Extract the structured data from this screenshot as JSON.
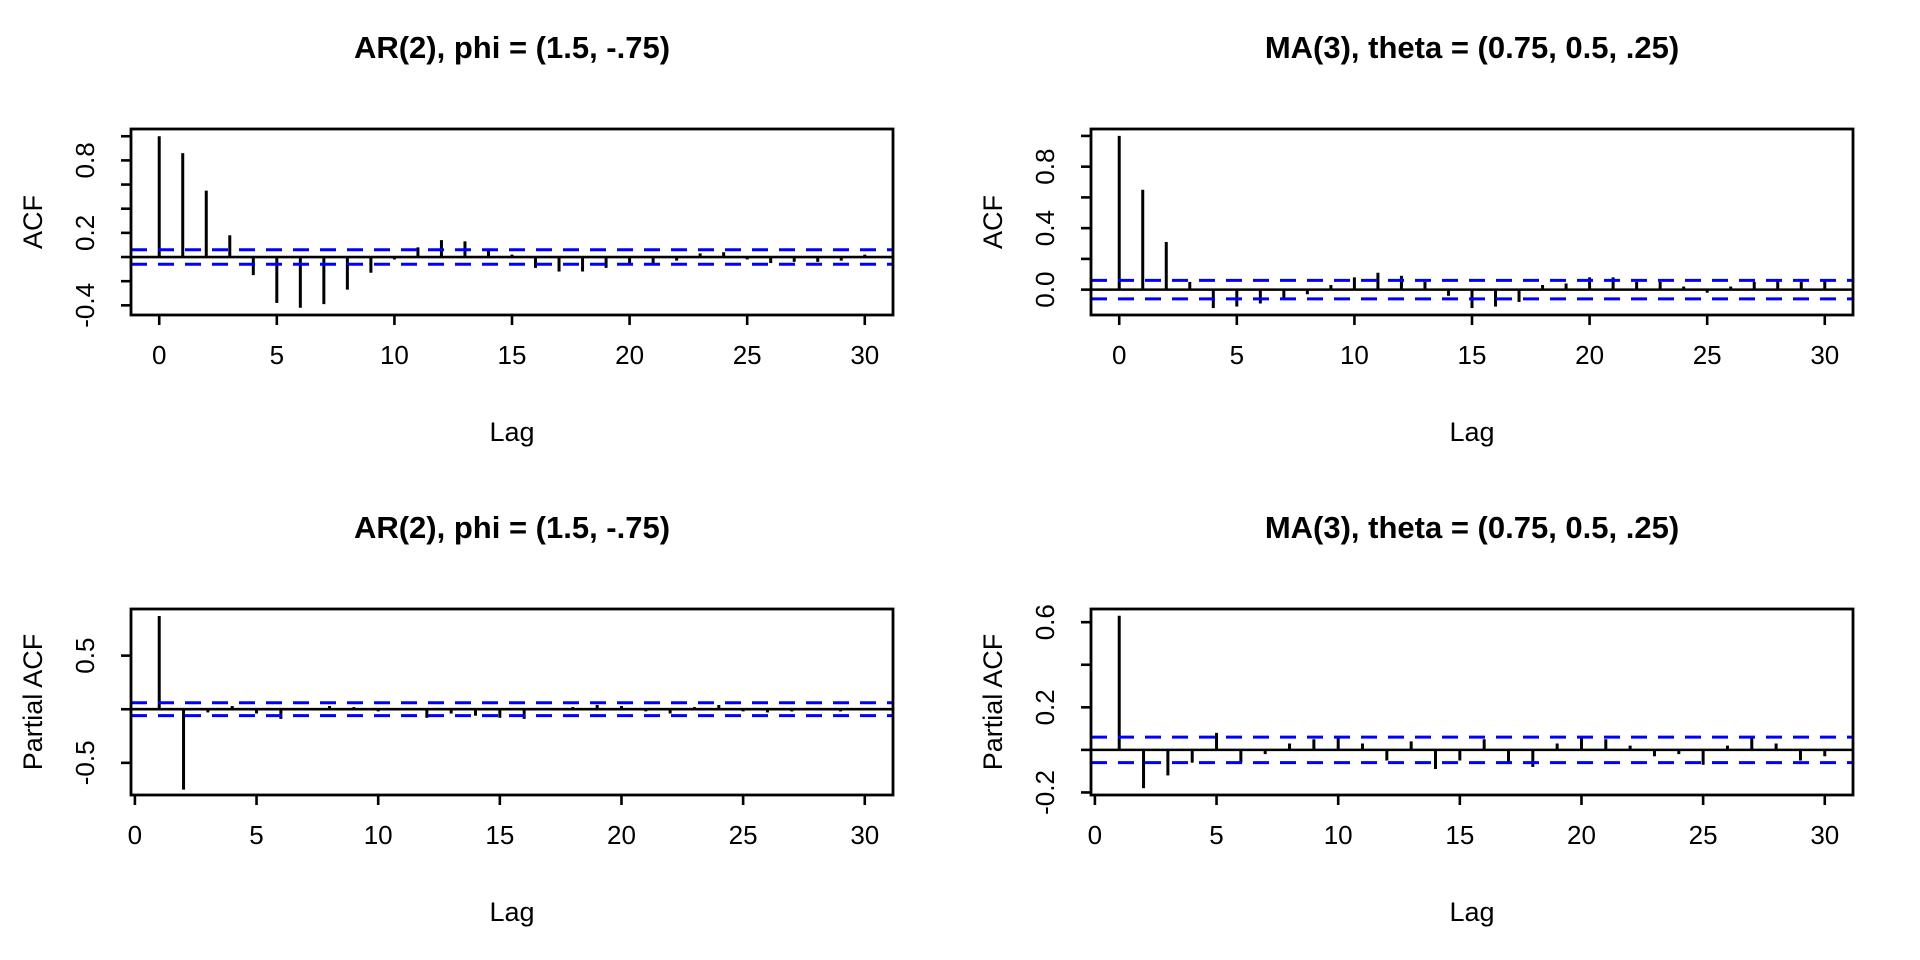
{
  "style": {
    "bar_color": "#000000",
    "band_color": "#0000ff",
    "axis_color": "#000000",
    "text_color": "#000000",
    "background": "#ffffff"
  },
  "chart_data": [
    {
      "id": "acf-ar2",
      "type": "bar",
      "title": "AR(2), phi = (1.5, -.75)",
      "ylabel": "ACF",
      "xlabel": "Lag",
      "lag_start": 0,
      "lag_end": 30,
      "values": [
        1.0,
        0.86,
        0.55,
        0.18,
        -0.15,
        -0.38,
        -0.42,
        -0.39,
        -0.27,
        -0.13,
        -0.02,
        0.08,
        0.14,
        0.13,
        0.07,
        0.02,
        -0.09,
        -0.12,
        -0.12,
        -0.09,
        -0.07,
        -0.07,
        -0.03,
        0.03,
        0.04,
        -0.02,
        -0.05,
        -0.04,
        -0.04,
        -0.03,
        0.02
      ],
      "conf_band": 0.06,
      "ylim": [
        -0.48,
        1.06
      ],
      "yticks": [
        {
          "v": -0.4,
          "label": "-0.4"
        },
        {
          "v": -0.2,
          "label": ""
        },
        {
          "v": 0.0,
          "label": ""
        },
        {
          "v": 0.2,
          "label": "0.2"
        },
        {
          "v": 0.4,
          "label": ""
        },
        {
          "v": 0.6,
          "label": ""
        },
        {
          "v": 0.8,
          "label": "0.8"
        },
        {
          "v": 1.0,
          "label": ""
        }
      ],
      "xticks": [
        {
          "v": 0,
          "label": "0"
        },
        {
          "v": 5,
          "label": "5"
        },
        {
          "v": 10,
          "label": "10"
        },
        {
          "v": 15,
          "label": "15"
        },
        {
          "v": 20,
          "label": "20"
        },
        {
          "v": 25,
          "label": "25"
        },
        {
          "v": 30,
          "label": "30"
        }
      ]
    },
    {
      "id": "acf-ma3",
      "type": "bar",
      "title": "MA(3), theta = (0.75, 0.5, .25)",
      "ylabel": "ACF",
      "xlabel": "Lag",
      "lag_start": 0,
      "lag_end": 30,
      "values": [
        1.0,
        0.65,
        0.31,
        0.05,
        -0.12,
        -0.11,
        -0.09,
        -0.06,
        -0.03,
        0.03,
        0.08,
        0.11,
        0.09,
        0.05,
        -0.04,
        -0.12,
        -0.11,
        -0.08,
        0.03,
        0.04,
        0.08,
        0.08,
        0.05,
        0.05,
        0.02,
        -0.02,
        0.02,
        0.05,
        0.06,
        0.05,
        0.06
      ],
      "conf_band": 0.06,
      "ylim": [
        -0.165,
        1.045
      ],
      "yticks": [
        {
          "v": 0.0,
          "label": "0.0"
        },
        {
          "v": 0.2,
          "label": ""
        },
        {
          "v": 0.4,
          "label": "0.4"
        },
        {
          "v": 0.6,
          "label": ""
        },
        {
          "v": 0.8,
          "label": "0.8"
        },
        {
          "v": 1.0,
          "label": ""
        }
      ],
      "xticks": [
        {
          "v": 0,
          "label": "0"
        },
        {
          "v": 5,
          "label": "5"
        },
        {
          "v": 10,
          "label": "10"
        },
        {
          "v": 15,
          "label": "15"
        },
        {
          "v": 20,
          "label": "20"
        },
        {
          "v": 25,
          "label": "25"
        },
        {
          "v": 30,
          "label": "30"
        }
      ]
    },
    {
      "id": "pacf-ar2",
      "type": "bar",
      "title": "AR(2), phi = (1.5, -.75)",
      "ylabel": "Partial ACF",
      "xlabel": "Lag",
      "lag_start": 1,
      "lag_end": 30,
      "values": [
        0.87,
        -0.75,
        -0.03,
        0.03,
        -0.04,
        -0.09,
        -0.01,
        0.03,
        0.02,
        -0.02,
        0.01,
        -0.08,
        -0.04,
        -0.06,
        -0.08,
        -0.09,
        0.01,
        0.02,
        0.04,
        0.03,
        -0.02,
        -0.04,
        0.02,
        0.04,
        -0.02,
        -0.03,
        -0.02,
        0.01,
        -0.02,
        0.01
      ],
      "conf_band": 0.06,
      "ylim": [
        -0.8,
        0.935
      ],
      "yticks": [
        {
          "v": -0.5,
          "label": "-0.5"
        },
        {
          "v": 0.0,
          "label": ""
        },
        {
          "v": 0.5,
          "label": "0.5"
        }
      ],
      "xticks": [
        {
          "v": 0,
          "label": "0"
        },
        {
          "v": 5,
          "label": "5"
        },
        {
          "v": 10,
          "label": "10"
        },
        {
          "v": 15,
          "label": "15"
        },
        {
          "v": 20,
          "label": "20"
        },
        {
          "v": 25,
          "label": "25"
        },
        {
          "v": 30,
          "label": "30"
        }
      ]
    },
    {
      "id": "pacf-ma3",
      "type": "bar",
      "title": "MA(3), theta = (0.75, 0.5, .25)",
      "ylabel": "Partial ACF",
      "xlabel": "Lag",
      "lag_start": 1,
      "lag_end": 30,
      "values": [
        0.63,
        -0.18,
        -0.12,
        -0.06,
        0.08,
        -0.06,
        -0.02,
        0.03,
        0.05,
        0.06,
        0.03,
        -0.05,
        0.04,
        -0.09,
        -0.05,
        0.05,
        -0.06,
        -0.08,
        0.03,
        0.06,
        0.05,
        0.02,
        -0.03,
        -0.02,
        -0.07,
        0.02,
        0.06,
        0.03,
        -0.05,
        -0.03
      ],
      "conf_band": 0.06,
      "ylim": [
        -0.212,
        0.662
      ],
      "yticks": [
        {
          "v": -0.2,
          "label": "-0.2"
        },
        {
          "v": 0.0,
          "label": ""
        },
        {
          "v": 0.2,
          "label": "0.2"
        },
        {
          "v": 0.4,
          "label": ""
        },
        {
          "v": 0.6,
          "label": "0.6"
        }
      ],
      "xticks": [
        {
          "v": 0,
          "label": "0"
        },
        {
          "v": 5,
          "label": "5"
        },
        {
          "v": 10,
          "label": "10"
        },
        {
          "v": 15,
          "label": "15"
        },
        {
          "v": 20,
          "label": "20"
        },
        {
          "v": 25,
          "label": "25"
        },
        {
          "v": 30,
          "label": "30"
        }
      ]
    }
  ]
}
